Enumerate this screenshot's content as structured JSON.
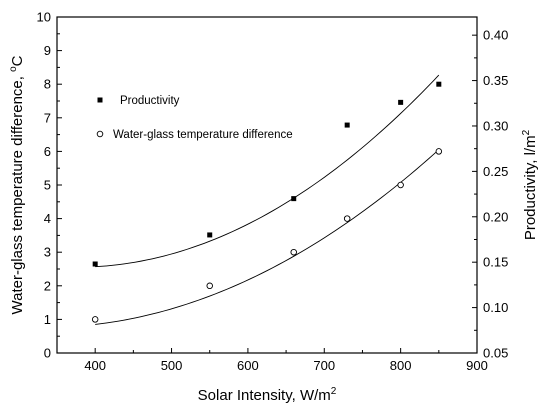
{
  "chart_data": {
    "type": "scatter",
    "title": "",
    "xlabel": "Solar Intensity, W/m",
    "xlabel_sup": "2",
    "ylabel_left": "Water-glass temperature difference, ",
    "ylabel_left_sup": "o",
    "ylabel_left_tail": "C",
    "ylabel_right": "Productivity, l/m",
    "ylabel_right_sup": "2",
    "xlim": [
      350,
      900
    ],
    "ylim_left": [
      0,
      10
    ],
    "ylim_right": [
      0.05,
      0.42
    ],
    "x_ticks": [
      400,
      500,
      600,
      700,
      800,
      900
    ],
    "y_left_ticks": [
      0,
      1,
      2,
      3,
      4,
      5,
      6,
      7,
      8,
      9,
      10
    ],
    "y_right_ticks": [
      0.05,
      0.1,
      0.15,
      0.2,
      0.25,
      0.3,
      0.35,
      0.4
    ],
    "y_right_tick_labels": [
      "0.05",
      "0.10",
      "0.15",
      "0.20",
      "0.25",
      "0.30",
      "0.35",
      "0.40"
    ],
    "legend_position": "upper-left",
    "series": [
      {
        "name": "Productivity",
        "axis": "right",
        "marker": "square-filled",
        "x": [
          400,
          550,
          660,
          730,
          800,
          850
        ],
        "y": [
          0.148,
          0.18,
          0.22,
          0.301,
          0.326,
          0.346
        ],
        "fit": {
          "type": "quadratic",
          "x_range": [
            400,
            850
          ],
          "at_x": [
            400,
            625,
            850
          ],
          "at_y": [
            0.145,
            0.203,
            0.356
          ]
        }
      },
      {
        "name": "Water-glass temperature difference",
        "axis": "left",
        "marker": "circle-open",
        "x": [
          400,
          550,
          660,
          730,
          800,
          850
        ],
        "y": [
          1.0,
          2.0,
          3.0,
          4.0,
          5.0,
          6.0
        ],
        "fit": {
          "type": "quadratic",
          "x_range": [
            400,
            850
          ],
          "at_x": [
            400,
            625,
            850
          ],
          "at_y": [
            0.85,
            2.45,
            6.05
          ]
        }
      }
    ]
  }
}
